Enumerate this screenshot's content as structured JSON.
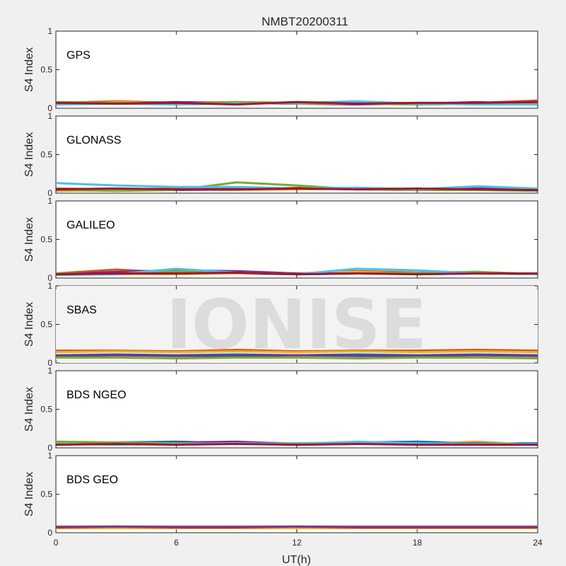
{
  "chart_data": {
    "type": "line",
    "title": "NMBT20200311",
    "xlabel": "UT(h)",
    "ylabel": "S4 Index",
    "xlim": [
      0,
      24
    ],
    "ylim": [
      0,
      1
    ],
    "xticks": [
      "0",
      "6",
      "12",
      "18",
      "24"
    ],
    "yticks": [
      "0",
      "0.5",
      "1"
    ],
    "grid": false,
    "series_colors": [
      "#0072BD",
      "#D95319",
      "#EDB120",
      "#7E2F8E",
      "#77AC30",
      "#4DBEEE",
      "#A2142F"
    ],
    "panels": [
      {
        "label": "GPS",
        "series": [
          {
            "x": [
              0,
              3,
              6,
              9,
              12,
              15,
              18,
              21,
              24
            ],
            "values": [
              0.06,
              0.07,
              0.06,
              0.07,
              0.06,
              0.07,
              0.05,
              0.06,
              0.07
            ]
          },
          {
            "x": [
              0,
              3,
              6,
              9,
              12,
              15,
              18,
              21,
              24
            ],
            "values": [
              0.07,
              0.09,
              0.07,
              0.08,
              0.07,
              0.08,
              0.06,
              0.07,
              0.1
            ]
          },
          {
            "x": [
              0,
              3,
              6,
              9,
              12,
              15,
              18,
              21,
              24
            ],
            "values": [
              0.05,
              0.08,
              0.06,
              0.06,
              0.08,
              0.06,
              0.07,
              0.05,
              0.06
            ]
          },
          {
            "x": [
              0,
              3,
              6,
              9,
              12,
              15,
              18,
              21,
              24
            ],
            "values": [
              0.06,
              0.06,
              0.08,
              0.07,
              0.06,
              0.05,
              0.06,
              0.08,
              0.05
            ]
          },
          {
            "x": [
              0,
              3,
              6,
              9,
              12,
              15,
              18,
              21,
              24
            ],
            "values": [
              0.08,
              0.07,
              0.06,
              0.08,
              0.06,
              0.06,
              0.05,
              0.06,
              0.06
            ]
          },
          {
            "x": [
              0,
              3,
              6,
              9,
              12,
              15,
              18,
              21,
              24
            ],
            "values": [
              0.05,
              0.06,
              0.05,
              0.06,
              0.07,
              0.09,
              0.06,
              0.05,
              0.05
            ]
          },
          {
            "x": [
              0,
              3,
              6,
              9,
              12,
              15,
              18,
              21,
              24
            ],
            "values": [
              0.07,
              0.06,
              0.07,
              0.05,
              0.08,
              0.06,
              0.07,
              0.07,
              0.08
            ]
          }
        ]
      },
      {
        "label": "GLONASS",
        "series": [
          {
            "x": [
              0,
              3,
              6,
              9,
              12,
              15,
              18,
              21,
              24
            ],
            "values": [
              0.04,
              0.05,
              0.05,
              0.06,
              0.05,
              0.06,
              0.05,
              0.05,
              0.05
            ]
          },
          {
            "x": [
              0,
              3,
              6,
              9,
              12,
              15,
              18,
              21,
              24
            ],
            "values": [
              0.06,
              0.05,
              0.06,
              0.05,
              0.07,
              0.05,
              0.04,
              0.06,
              0.05
            ]
          },
          {
            "x": [
              0,
              3,
              6,
              9,
              12,
              15,
              18,
              21,
              24
            ],
            "values": [
              0.03,
              0.04,
              0.05,
              0.04,
              0.05,
              0.06,
              0.04,
              0.05,
              0.04
            ]
          },
          {
            "x": [
              0,
              3,
              6,
              9,
              12,
              15,
              18,
              21,
              24
            ],
            "values": [
              0.05,
              0.06,
              0.04,
              0.05,
              0.06,
              0.07,
              0.05,
              0.06,
              0.06
            ]
          },
          {
            "x": [
              0,
              3,
              6,
              9,
              12,
              15,
              18,
              21,
              24
            ],
            "values": [
              0.04,
              0.03,
              0.04,
              0.14,
              0.1,
              0.05,
              0.04,
              0.04,
              0.03
            ]
          },
          {
            "x": [
              0,
              3,
              6,
              9,
              12,
              15,
              18,
              21,
              24
            ],
            "values": [
              0.13,
              0.1,
              0.08,
              0.08,
              0.06,
              0.07,
              0.05,
              0.09,
              0.06
            ]
          },
          {
            "x": [
              0,
              3,
              6,
              9,
              12,
              15,
              18,
              21,
              24
            ],
            "values": [
              0.05,
              0.06,
              0.05,
              0.05,
              0.06,
              0.05,
              0.06,
              0.05,
              0.04
            ]
          }
        ]
      },
      {
        "label": "GALILEO",
        "series": [
          {
            "x": [
              0,
              3,
              6,
              9,
              12,
              15,
              18,
              21,
              24
            ],
            "values": [
              0.05,
              0.05,
              0.06,
              0.06,
              0.05,
              0.06,
              0.05,
              0.06,
              0.05
            ]
          },
          {
            "x": [
              0,
              3,
              6,
              9,
              12,
              15,
              18,
              21,
              24
            ],
            "values": [
              0.06,
              0.11,
              0.07,
              0.08,
              0.06,
              0.09,
              0.07,
              0.08,
              0.05
            ]
          },
          {
            "x": [
              0,
              3,
              6,
              9,
              12,
              15,
              18,
              21,
              24
            ],
            "values": [
              0.04,
              0.05,
              0.05,
              0.06,
              0.06,
              0.08,
              0.06,
              0.07,
              0.05
            ]
          },
          {
            "x": [
              0,
              3,
              6,
              9,
              12,
              15,
              18,
              21,
              24
            ],
            "values": [
              0.05,
              0.08,
              0.1,
              0.09,
              0.06,
              0.06,
              0.06,
              0.06,
              0.05
            ]
          },
          {
            "x": [
              0,
              3,
              6,
              9,
              12,
              15,
              18,
              21,
              24
            ],
            "values": [
              0.06,
              0.05,
              0.09,
              0.07,
              0.05,
              0.06,
              0.07,
              0.08,
              0.05
            ]
          },
          {
            "x": [
              0,
              3,
              6,
              9,
              12,
              15,
              18,
              21,
              24
            ],
            "values": [
              0.04,
              0.05,
              0.12,
              0.07,
              0.05,
              0.12,
              0.1,
              0.06,
              0.05
            ]
          },
          {
            "x": [
              0,
              3,
              6,
              9,
              12,
              15,
              18,
              21,
              24
            ],
            "values": [
              0.05,
              0.06,
              0.06,
              0.07,
              0.05,
              0.06,
              0.05,
              0.06,
              0.06
            ]
          }
        ]
      },
      {
        "label": "SBAS",
        "series": [
          {
            "x": [
              0,
              3,
              6,
              9,
              12,
              15,
              18,
              21,
              24
            ],
            "values": [
              0.1,
              0.11,
              0.1,
              0.11,
              0.1,
              0.11,
              0.1,
              0.11,
              0.1
            ]
          },
          {
            "x": [
              0,
              3,
              6,
              9,
              12,
              15,
              18,
              21,
              24
            ],
            "values": [
              0.16,
              0.16,
              0.15,
              0.17,
              0.15,
              0.16,
              0.16,
              0.17,
              0.16
            ]
          },
          {
            "x": [
              0,
              3,
              6,
              9,
              12,
              15,
              18,
              21,
              24
            ],
            "values": [
              0.14,
              0.15,
              0.14,
              0.15,
              0.14,
              0.15,
              0.14,
              0.15,
              0.14
            ]
          },
          {
            "x": [
              0,
              3,
              6,
              9,
              12,
              15,
              18,
              21,
              24
            ],
            "values": [
              0.09,
              0.1,
              0.09,
              0.09,
              0.1,
              0.09,
              0.09,
              0.1,
              0.09
            ]
          },
          {
            "x": [
              0,
              3,
              6,
              9,
              12,
              15,
              18,
              21,
              24
            ],
            "values": [
              0.07,
              0.07,
              0.06,
              0.07,
              0.07,
              0.06,
              0.07,
              0.07,
              0.06
            ]
          }
        ]
      },
      {
        "label": "BDS NGEO",
        "series": [
          {
            "x": [
              0,
              3,
              6,
              9,
              12,
              15,
              18,
              21,
              24
            ],
            "values": [
              0.06,
              0.07,
              0.08,
              0.06,
              0.05,
              0.07,
              0.08,
              0.06,
              0.06
            ]
          },
          {
            "x": [
              0,
              3,
              6,
              9,
              12,
              15,
              18,
              21,
              24
            ],
            "values": [
              0.05,
              0.06,
              0.05,
              0.06,
              0.04,
              0.05,
              0.06,
              0.05,
              0.05
            ]
          },
          {
            "x": [
              0,
              3,
              6,
              9,
              12,
              15,
              18,
              21,
              24
            ],
            "values": [
              0.07,
              0.05,
              0.06,
              0.07,
              0.06,
              0.06,
              0.05,
              0.08,
              0.04
            ]
          },
          {
            "x": [
              0,
              3,
              6,
              9,
              12,
              15,
              18,
              21,
              24
            ],
            "values": [
              0.04,
              0.06,
              0.07,
              0.08,
              0.05,
              0.05,
              0.06,
              0.06,
              0.04
            ]
          },
          {
            "x": [
              0,
              3,
              6,
              9,
              12,
              15,
              18,
              21,
              24
            ],
            "values": [
              0.08,
              0.07,
              0.06,
              0.05,
              0.06,
              0.07,
              0.05,
              0.05,
              0.05
            ]
          },
          {
            "x": [
              0,
              3,
              6,
              9,
              12,
              15,
              18,
              21,
              24
            ],
            "values": [
              0.05,
              0.04,
              0.05,
              0.06,
              0.05,
              0.08,
              0.06,
              0.05,
              0.05
            ]
          },
          {
            "x": [
              0,
              3,
              6,
              9,
              12,
              15,
              18,
              21,
              24
            ],
            "values": [
              0.04,
              0.05,
              0.04,
              0.05,
              0.04,
              0.05,
              0.04,
              0.04,
              0.04
            ]
          }
        ]
      },
      {
        "label": "BDS GEO",
        "series": [
          {
            "x": [
              0,
              3,
              6,
              9,
              12,
              15,
              18,
              21,
              24
            ],
            "values": [
              0.07,
              0.07,
              0.07,
              0.07,
              0.07,
              0.07,
              0.07,
              0.07,
              0.07
            ]
          },
          {
            "x": [
              0,
              3,
              6,
              9,
              12,
              15,
              18,
              21,
              24
            ],
            "values": [
              0.08,
              0.08,
              0.08,
              0.08,
              0.08,
              0.08,
              0.08,
              0.08,
              0.08
            ]
          },
          {
            "x": [
              0,
              3,
              6,
              9,
              12,
              15,
              18,
              21,
              24
            ],
            "values": [
              0.06,
              0.06,
              0.06,
              0.06,
              0.06,
              0.06,
              0.06,
              0.06,
              0.06
            ]
          },
          {
            "x": [
              0,
              3,
              6,
              9,
              12,
              15,
              18,
              21,
              24
            ],
            "values": [
              0.07,
              0.08,
              0.07,
              0.07,
              0.08,
              0.07,
              0.07,
              0.07,
              0.07
            ]
          }
        ]
      }
    ],
    "watermark": "IONISE"
  }
}
